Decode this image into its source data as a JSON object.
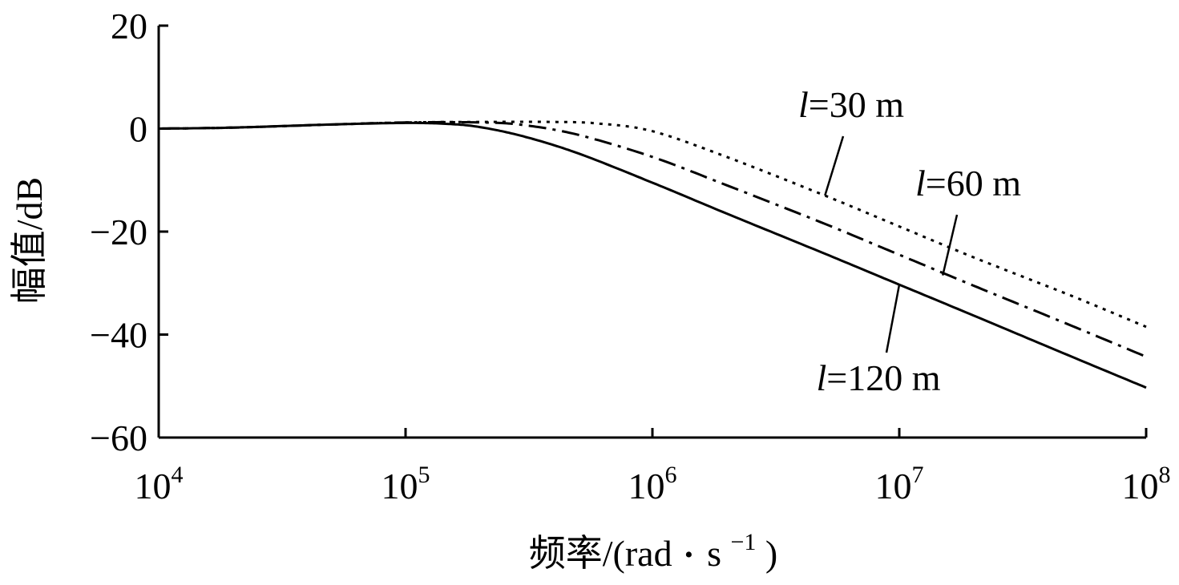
{
  "chart_data": {
    "type": "line",
    "xscale": "log",
    "xlim": [
      10000,
      100000000
    ],
    "ylim": [
      -60,
      20
    ],
    "xlabel_main": "频率/(rad",
    "xlabel_unit": "s",
    "xlabel_exp": "−1",
    "xlabel_close": ")",
    "xlabel_dot": "•",
    "ylabel": "幅值/dB",
    "yticks": [
      {
        "value": 20,
        "label": "20"
      },
      {
        "value": 0,
        "label": "0"
      },
      {
        "value": -20,
        "label": "−20"
      },
      {
        "value": -40,
        "label": "−40"
      },
      {
        "value": -60,
        "label": "−60"
      }
    ],
    "xticks": [
      {
        "value": 10000,
        "base": "10",
        "exp": "4"
      },
      {
        "value": 100000,
        "base": "10",
        "exp": "5"
      },
      {
        "value": 1000000,
        "base": "10",
        "exp": "6"
      },
      {
        "value": 10000000,
        "base": "10",
        "exp": "7"
      },
      {
        "value": 100000000,
        "base": "10",
        "exp": "8"
      }
    ],
    "series": [
      {
        "name": "l=30 m",
        "label_var": "l",
        "label_rest": "=30 m",
        "style": "dotted",
        "x": [
          10000,
          20000,
          50000,
          100000,
          200000,
          400000,
          600000,
          1000000,
          2000000,
          5000000,
          10000000,
          20000000,
          50000000,
          100000000
        ],
        "y": [
          0,
          0.2,
          0.8,
          1.2,
          1.3,
          1.3,
          1.0,
          -0.5,
          -5.5,
          -13.0,
          -19.0,
          -25.0,
          -32.5,
          -38.5
        ]
      },
      {
        "name": "l=60 m",
        "label_var": "l",
        "label_rest": "=60 m",
        "style": "dashdot",
        "x": [
          10000,
          20000,
          50000,
          100000,
          200000,
          300000,
          500000,
          1000000,
          2000000,
          5000000,
          10000000,
          20000000,
          50000000,
          100000000
        ],
        "y": [
          0,
          0.2,
          0.8,
          1.2,
          1.2,
          0.7,
          -1.2,
          -5.5,
          -11.0,
          -18.5,
          -24.5,
          -30.5,
          -38.3,
          -44.3
        ]
      },
      {
        "name": "l=120 m",
        "label_var": "l",
        "label_rest": "=120 m",
        "style": "solid",
        "x": [
          10000,
          20000,
          50000,
          100000,
          150000,
          200000,
          300000,
          500000,
          1000000,
          2000000,
          5000000,
          10000000,
          20000000,
          50000000,
          100000000
        ],
        "y": [
          0,
          0.2,
          0.8,
          1.1,
          0.9,
          0.3,
          -1.5,
          -4.8,
          -10.5,
          -16.5,
          -24.3,
          -30.3,
          -36.3,
          -44.3,
          -50.3
        ]
      }
    ],
    "annotations": [
      {
        "series": 0,
        "text_var": "l",
        "text_rest": "=30 m",
        "pointer_at": [
          5000000,
          -13.0
        ]
      },
      {
        "series": 1,
        "text_var": "l",
        "text_rest": "=60 m",
        "pointer_at": [
          15000000,
          -28.5
        ]
      },
      {
        "series": 2,
        "text_var": "l",
        "text_rest": "=120 m",
        "pointer_at": [
          10000000,
          -30.3
        ]
      }
    ],
    "grid": false,
    "legend": "none"
  }
}
